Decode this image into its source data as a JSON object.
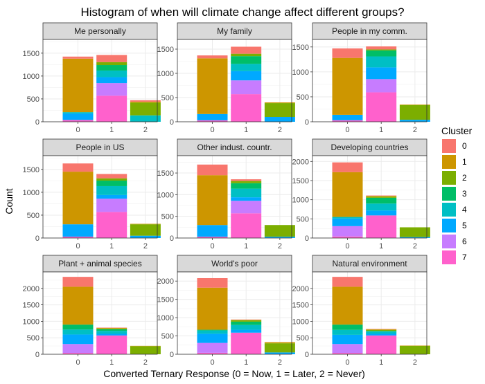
{
  "chart_data": {
    "type": "bar",
    "stacked": true,
    "title": "Histogram of when will climate change affect different groups?",
    "xlabel": "Converted Ternary Response (0 = Now, 1 = Later, 2 = Never)",
    "ylabel": "Count",
    "categories": [
      "0",
      "1",
      "2"
    ],
    "legend": {
      "title": "Cluster",
      "placement": "right",
      "entries": [
        "0",
        "1",
        "2",
        "3",
        "4",
        "5",
        "6",
        "7"
      ]
    },
    "colors": {
      "0": "#F8766D",
      "1": "#CD9600",
      "2": "#7CAE00",
      "3": "#00BE67",
      "4": "#00BFC4",
      "5": "#00A9FF",
      "6": "#C77CFF",
      "7": "#FF61CC"
    },
    "grid": true,
    "panels": [
      {
        "label": "Me personally",
        "ylim": [
          0,
          1800
        ],
        "yticks": [
          0,
          500,
          1000,
          1500
        ],
        "stack": [
          [
            {
              "c": "7",
              "v": 40
            },
            {
              "c": "5",
              "v": 140
            },
            {
              "c": "4",
              "v": 30
            },
            {
              "c": "1",
              "v": 1170
            },
            {
              "c": "0",
              "v": 45
            }
          ],
          [
            {
              "c": "7",
              "v": 570
            },
            {
              "c": "6",
              "v": 275
            },
            {
              "c": "5",
              "v": 130
            },
            {
              "c": "4",
              "v": 145
            },
            {
              "c": "3",
              "v": 120
            },
            {
              "c": "2",
              "v": 65
            },
            {
              "c": "0",
              "v": 155
            }
          ],
          [
            {
              "c": "4",
              "v": 140
            },
            {
              "c": "2",
              "v": 280
            },
            {
              "c": "1",
              "v": 20
            },
            {
              "c": "0",
              "v": 30
            }
          ]
        ]
      },
      {
        "label": "My family",
        "ylim": [
          0,
          1700
        ],
        "yticks": [
          0,
          500,
          1000,
          1500
        ],
        "stack": [
          [
            {
              "c": "7",
              "v": 30
            },
            {
              "c": "5",
              "v": 130
            },
            {
              "c": "1",
              "v": 1150
            },
            {
              "c": "0",
              "v": 60
            }
          ],
          [
            {
              "c": "7",
              "v": 570
            },
            {
              "c": "6",
              "v": 285
            },
            {
              "c": "5",
              "v": 190
            },
            {
              "c": "4",
              "v": 150
            },
            {
              "c": "3",
              "v": 160
            },
            {
              "c": "2",
              "v": 50
            },
            {
              "c": "0",
              "v": 145
            }
          ],
          [
            {
              "c": "5",
              "v": 100
            },
            {
              "c": "2",
              "v": 285
            },
            {
              "c": "1",
              "v": 15
            }
          ]
        ]
      },
      {
        "label": "People in my comm.",
        "ylim": [
          0,
          1650
        ],
        "yticks": [
          0,
          500,
          1000,
          1500
        ],
        "stack": [
          [
            {
              "c": "7",
              "v": 30
            },
            {
              "c": "5",
              "v": 110
            },
            {
              "c": "1",
              "v": 1140
            },
            {
              "c": "0",
              "v": 190
            }
          ],
          [
            {
              "c": "7",
              "v": 590
            },
            {
              "c": "6",
              "v": 265
            },
            {
              "c": "5",
              "v": 235
            },
            {
              "c": "4",
              "v": 220
            },
            {
              "c": "3",
              "v": 120
            },
            {
              "c": "2",
              "v": 20
            },
            {
              "c": "0",
              "v": 60
            }
          ],
          [
            {
              "c": "5",
              "v": 40
            },
            {
              "c": "2",
              "v": 295
            },
            {
              "c": "1",
              "v": 10
            }
          ]
        ]
      },
      {
        "label": "People in US",
        "ylim": [
          0,
          1800
        ],
        "yticks": [
          0,
          500,
          1000,
          1500
        ],
        "stack": [
          [
            {
              "c": "7",
              "v": 30
            },
            {
              "c": "5",
              "v": 270
            },
            {
              "c": "1",
              "v": 1150
            },
            {
              "c": "0",
              "v": 180
            }
          ],
          [
            {
              "c": "7",
              "v": 570
            },
            {
              "c": "6",
              "v": 290
            },
            {
              "c": "5",
              "v": 80
            },
            {
              "c": "4",
              "v": 195
            },
            {
              "c": "3",
              "v": 120
            },
            {
              "c": "2",
              "v": 50
            },
            {
              "c": "0",
              "v": 95
            }
          ],
          [
            {
              "c": "5",
              "v": 50
            },
            {
              "c": "2",
              "v": 250
            },
            {
              "c": "1",
              "v": 10
            }
          ]
        ]
      },
      {
        "label": "Other indust. countr.",
        "ylim": [
          0,
          1900
        ],
        "yticks": [
          0,
          500,
          1000,
          1500
        ],
        "stack": [
          [
            {
              "c": "7",
              "v": 30
            },
            {
              "c": "5",
              "v": 270
            },
            {
              "c": "1",
              "v": 1150
            },
            {
              "c": "0",
              "v": 245
            }
          ],
          [
            {
              "c": "7",
              "v": 570
            },
            {
              "c": "6",
              "v": 290
            },
            {
              "c": "5",
              "v": 80
            },
            {
              "c": "4",
              "v": 200
            },
            {
              "c": "3",
              "v": 125
            },
            {
              "c": "2",
              "v": 50
            },
            {
              "c": "0",
              "v": 40
            }
          ],
          [
            {
              "c": "5",
              "v": 30
            },
            {
              "c": "2",
              "v": 270
            }
          ]
        ]
      },
      {
        "label": "Developing countries",
        "ylim": [
          0,
          2150
        ],
        "yticks": [
          0,
          500,
          1000,
          1500,
          2000
        ],
        "stack": [
          [
            {
              "c": "7",
              "v": 40
            },
            {
              "c": "6",
              "v": 270
            },
            {
              "c": "5",
              "v": 200
            },
            {
              "c": "4",
              "v": 40
            },
            {
              "c": "1",
              "v": 1170
            },
            {
              "c": "0",
              "v": 255
            }
          ],
          [
            {
              "c": "7",
              "v": 590
            },
            {
              "c": "5",
              "v": 130
            },
            {
              "c": "4",
              "v": 180
            },
            {
              "c": "3",
              "v": 150
            },
            {
              "c": "2",
              "v": 30
            },
            {
              "c": "1",
              "v": 20
            },
            {
              "c": "0",
              "v": 10
            }
          ],
          [
            {
              "c": "5",
              "v": 25
            },
            {
              "c": "2",
              "v": 255
            }
          ]
        ]
      },
      {
        "label": "Plant + animal species",
        "ylim": [
          0,
          2500
        ],
        "yticks": [
          0,
          500,
          1000,
          1500,
          2000
        ],
        "stack": [
          [
            {
              "c": "7",
              "v": 40
            },
            {
              "c": "6",
              "v": 270
            },
            {
              "c": "5",
              "v": 290
            },
            {
              "c": "4",
              "v": 150
            },
            {
              "c": "3",
              "v": 150
            },
            {
              "c": "1",
              "v": 1150
            },
            {
              "c": "0",
              "v": 300
            }
          ],
          [
            {
              "c": "7",
              "v": 570
            },
            {
              "c": "5",
              "v": 50
            },
            {
              "c": "4",
              "v": 90
            },
            {
              "c": "3",
              "v": 50
            },
            {
              "c": "2",
              "v": 20
            },
            {
              "c": "1",
              "v": 20
            },
            {
              "c": "0",
              "v": 10
            }
          ],
          [
            {
              "c": "2",
              "v": 245
            },
            {
              "c": "1",
              "v": 10
            }
          ]
        ]
      },
      {
        "label": "World's poor",
        "ylim": [
          0,
          2250
        ],
        "yticks": [
          0,
          500,
          1000,
          1500,
          2000
        ],
        "stack": [
          [
            {
              "c": "7",
              "v": 40
            },
            {
              "c": "6",
              "v": 270
            },
            {
              "c": "5",
              "v": 250
            },
            {
              "c": "4",
              "v": 90
            },
            {
              "c": "3",
              "v": 20
            },
            {
              "c": "1",
              "v": 1150
            },
            {
              "c": "0",
              "v": 260
            }
          ],
          [
            {
              "c": "7",
              "v": 590
            },
            {
              "c": "5",
              "v": 80
            },
            {
              "c": "4",
              "v": 130
            },
            {
              "c": "3",
              "v": 90
            },
            {
              "c": "2",
              "v": 40
            },
            {
              "c": "1",
              "v": 10
            },
            {
              "c": "0",
              "v": 10
            }
          ],
          [
            {
              "c": "5",
              "v": 50
            },
            {
              "c": "2",
              "v": 250
            },
            {
              "c": "1",
              "v": 30
            }
          ]
        ]
      },
      {
        "label": "Natural environment",
        "ylim": [
          0,
          2500
        ],
        "yticks": [
          0,
          500,
          1000,
          1500,
          2000
        ],
        "stack": [
          [
            {
              "c": "7",
              "v": 40
            },
            {
              "c": "6",
              "v": 270
            },
            {
              "c": "5",
              "v": 280
            },
            {
              "c": "4",
              "v": 150
            },
            {
              "c": "3",
              "v": 160
            },
            {
              "c": "1",
              "v": 1150
            },
            {
              "c": "0",
              "v": 300
            }
          ],
          [
            {
              "c": "7",
              "v": 570
            },
            {
              "c": "5",
              "v": 50
            },
            {
              "c": "4",
              "v": 70
            },
            {
              "c": "3",
              "v": 20
            },
            {
              "c": "2",
              "v": 30
            },
            {
              "c": "1",
              "v": 20
            },
            {
              "c": "0",
              "v": 10
            }
          ],
          [
            {
              "c": "2",
              "v": 255
            },
            {
              "c": "1",
              "v": 10
            }
          ]
        ]
      }
    ]
  }
}
